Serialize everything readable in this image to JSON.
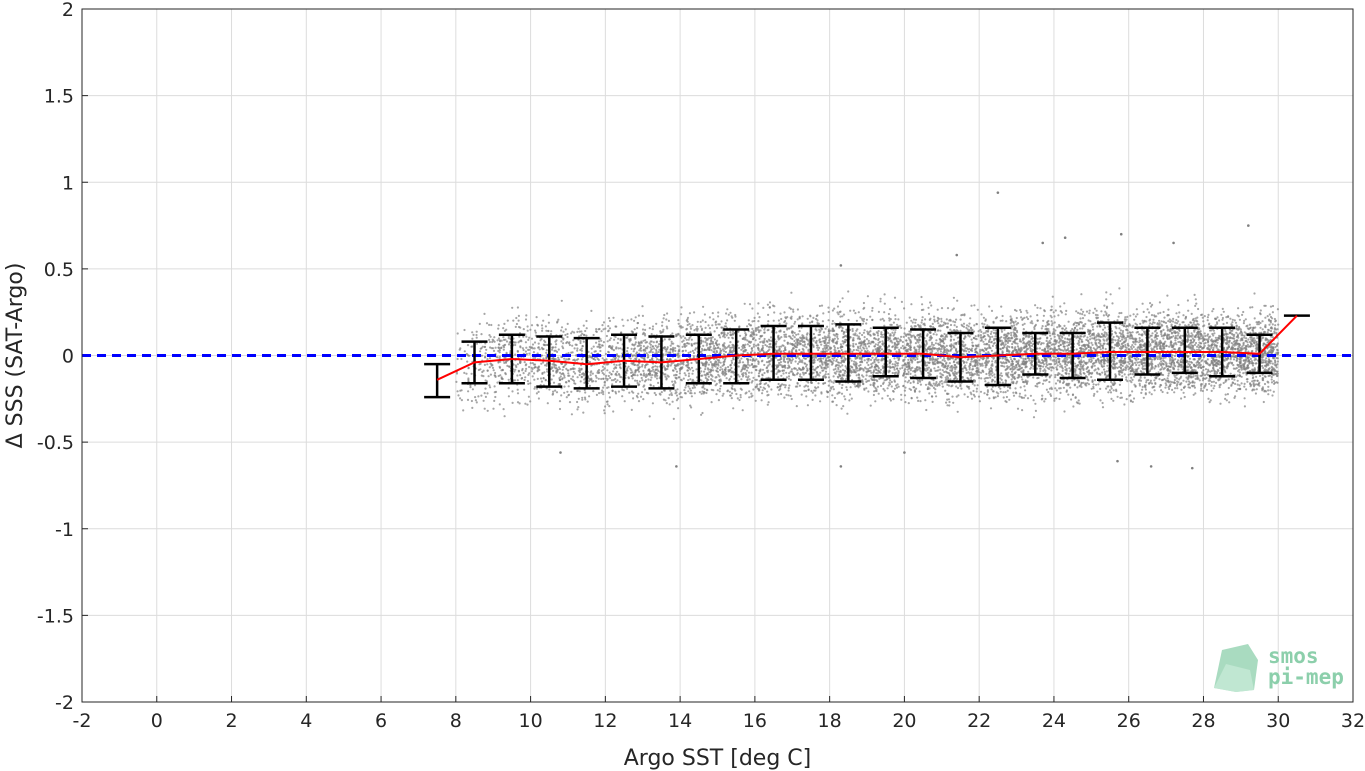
{
  "chart_data": {
    "type": "scatter",
    "title": "",
    "xlabel": "Argo SST [deg C]",
    "ylabel": "Δ SSS (SAT-Argo)",
    "xlim": [
      -2,
      32
    ],
    "ylim": [
      -2,
      2
    ],
    "grid": true,
    "x_ticks": [
      "-2",
      "0",
      "2",
      "4",
      "6",
      "8",
      "10",
      "12",
      "14",
      "16",
      "18",
      "20",
      "22",
      "24",
      "26",
      "28",
      "30",
      "32"
    ],
    "y_ticks": [
      "2",
      "1.5",
      "1",
      "0.5",
      "0",
      "-0.5",
      "-1",
      "-1.5",
      "-2"
    ],
    "scatter_cloud": {
      "color": "#808080",
      "x_range": [
        8,
        30
      ],
      "typical_y_range": [
        -0.35,
        0.35
      ],
      "outliers": [
        {
          "x": 22.5,
          "y": 0.94
        },
        {
          "x": 29.2,
          "y": 0.75
        },
        {
          "x": 25.8,
          "y": 0.7
        },
        {
          "x": 24.3,
          "y": 0.68
        },
        {
          "x": 23.7,
          "y": 0.65
        },
        {
          "x": 27.2,
          "y": 0.65
        },
        {
          "x": 21.4,
          "y": 0.58
        },
        {
          "x": 18.3,
          "y": 0.52
        },
        {
          "x": 13.9,
          "y": -0.64
        },
        {
          "x": 18.3,
          "y": -0.64
        },
        {
          "x": 27.7,
          "y": -0.65
        },
        {
          "x": 26.6,
          "y": -0.64
        },
        {
          "x": 25.7,
          "y": -0.61
        },
        {
          "x": 10.8,
          "y": -0.56
        },
        {
          "x": 20.0,
          "y": -0.56
        }
      ]
    },
    "series": [
      {
        "name": "",
        "color": "#ff0000",
        "x": [
          7.5,
          8.5,
          9.5,
          10.5,
          11.5,
          12.5,
          13.5,
          14.5,
          15.5,
          16.5,
          17.5,
          18.5,
          19.5,
          20.5,
          21.5,
          22.5,
          23.5,
          24.5,
          25.5,
          26.5,
          27.5,
          28.5,
          29.5,
          30.5
        ],
        "y": [
          -0.14,
          -0.04,
          -0.02,
          -0.03,
          -0.05,
          -0.03,
          -0.04,
          -0.02,
          0.0,
          0.01,
          0.01,
          0.01,
          0.01,
          0.01,
          -0.01,
          0.0,
          0.01,
          0.01,
          0.02,
          0.02,
          0.02,
          0.02,
          0.01,
          0.23
        ],
        "err_low": [
          -0.24,
          -0.16,
          -0.16,
          -0.18,
          -0.19,
          -0.18,
          -0.19,
          -0.16,
          -0.16,
          -0.14,
          -0.14,
          -0.15,
          -0.12,
          -0.13,
          -0.15,
          -0.17,
          -0.11,
          -0.13,
          -0.14,
          -0.11,
          -0.1,
          -0.12,
          -0.1,
          0.23
        ],
        "err_high": [
          -0.05,
          0.08,
          0.12,
          0.11,
          0.1,
          0.12,
          0.11,
          0.12,
          0.15,
          0.17,
          0.17,
          0.18,
          0.16,
          0.15,
          0.13,
          0.16,
          0.13,
          0.13,
          0.19,
          0.16,
          0.16,
          0.16,
          0.12,
          0.23
        ]
      }
    ],
    "reference_line": {
      "y": 0,
      "color": "#0000ff",
      "style": "dashed"
    }
  },
  "logo": {
    "line1": "smos",
    "line2": "pi-mep"
  }
}
